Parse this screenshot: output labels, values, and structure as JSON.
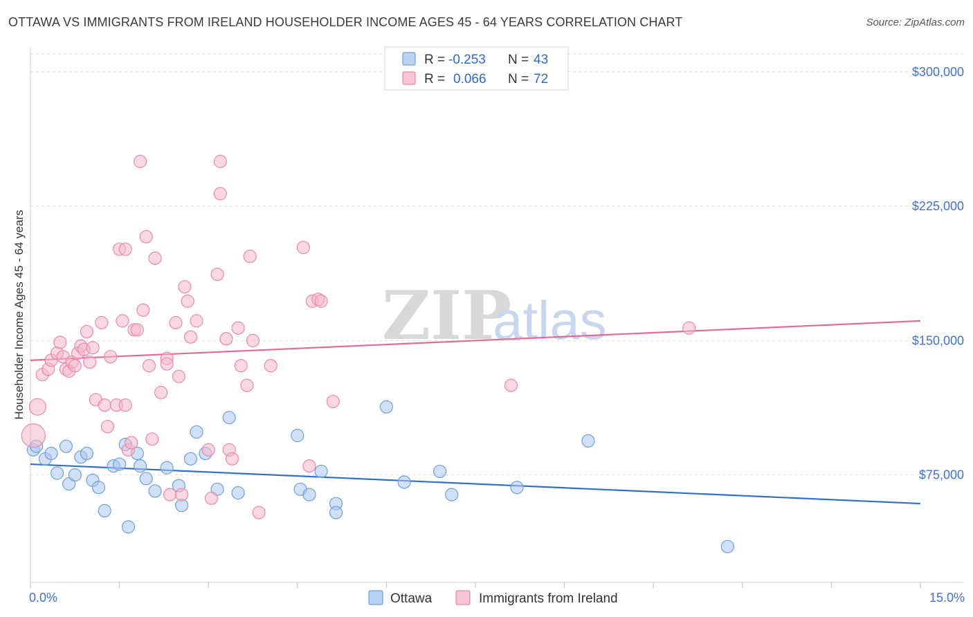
{
  "title": "OTTAWA VS IMMIGRANTS FROM IRELAND HOUSEHOLDER INCOME AGES 45 - 64 YEARS CORRELATION CHART",
  "source": "Source: ZipAtlas.com",
  "watermark": {
    "zip": "ZIP",
    "atlas": "atlas"
  },
  "legend": {
    "rows": [
      {
        "r_label": "R = ",
        "r_value": "-0.253",
        "n_label": "N = ",
        "n_value": "43",
        "color": "#aac8f0"
      },
      {
        "r_label": "R = ",
        "r_value": "0.066",
        "n_label": "N = ",
        "n_value": "72",
        "color": "#f5b8cb"
      }
    ]
  },
  "chart_data": {
    "type": "scatter",
    "ylabel": "Householder Income Ages 45 - 64 years",
    "xlim": [
      0,
      15
    ],
    "ylim": [
      15000,
      310000
    ],
    "x_tick_labels": [
      {
        "value": 0,
        "label": "0.0%"
      },
      {
        "value": 15,
        "label": "15.0%"
      }
    ],
    "y_ticks": [
      {
        "value": 75000,
        "label": "$75,000"
      },
      {
        "value": 150000,
        "label": "$150,000"
      },
      {
        "value": 225000,
        "label": "$225,000"
      },
      {
        "value": 300000,
        "label": "$300,000"
      }
    ],
    "series": [
      {
        "name": "Ottawa",
        "color": "#aac8f0",
        "stroke": "#6f9fd8",
        "trend": {
          "x": [
            0,
            15
          ],
          "y": [
            81000,
            59000
          ],
          "color": "#2f6fc9"
        },
        "points": [
          [
            0.05,
            89000
          ],
          [
            0.1,
            91000
          ],
          [
            0.25,
            84000
          ],
          [
            0.35,
            87000
          ],
          [
            0.45,
            76000
          ],
          [
            0.6,
            91000
          ],
          [
            0.65,
            70000
          ],
          [
            0.75,
            75000
          ],
          [
            0.85,
            85000
          ],
          [
            0.95,
            87000
          ],
          [
            1.05,
            72000
          ],
          [
            1.15,
            68000
          ],
          [
            1.25,
            55000
          ],
          [
            1.4,
            80000
          ],
          [
            1.5,
            81000
          ],
          [
            1.6,
            92000
          ],
          [
            1.65,
            46000
          ],
          [
            1.8,
            87000
          ],
          [
            1.85,
            80000
          ],
          [
            1.95,
            73000
          ],
          [
            2.1,
            66000
          ],
          [
            2.3,
            79000
          ],
          [
            2.5,
            69000
          ],
          [
            2.55,
            58000
          ],
          [
            2.7,
            84000
          ],
          [
            2.8,
            99000
          ],
          [
            2.95,
            87000
          ],
          [
            3.15,
            67000
          ],
          [
            3.35,
            107000
          ],
          [
            3.5,
            65000
          ],
          [
            4.5,
            97000
          ],
          [
            4.55,
            67000
          ],
          [
            4.7,
            64000
          ],
          [
            4.9,
            77000
          ],
          [
            5.15,
            59000
          ],
          [
            5.15,
            54000
          ],
          [
            6.0,
            113000
          ],
          [
            6.3,
            71000
          ],
          [
            6.9,
            77000
          ],
          [
            7.1,
            64000
          ],
          [
            8.2,
            68000
          ],
          [
            9.4,
            94000
          ],
          [
            11.75,
            35000
          ]
        ]
      },
      {
        "name": "Immigrants from Ireland",
        "color": "#f5b8cb",
        "stroke": "#e88aa7",
        "trend": {
          "x": [
            0,
            15
          ],
          "y": [
            139000,
            161000
          ],
          "color": "#e26b95"
        },
        "points": [
          [
            0.05,
            97000
          ],
          [
            0.12,
            113000
          ],
          [
            0.2,
            131000
          ],
          [
            0.3,
            134000
          ],
          [
            0.35,
            139000
          ],
          [
            0.45,
            143000
          ],
          [
            0.5,
            149000
          ],
          [
            0.55,
            141000
          ],
          [
            0.6,
            134000
          ],
          [
            0.65,
            133000
          ],
          [
            0.7,
            138000
          ],
          [
            0.75,
            136000
          ],
          [
            0.8,
            143000
          ],
          [
            0.85,
            147000
          ],
          [
            0.9,
            145000
          ],
          [
            0.95,
            155000
          ],
          [
            1.0,
            138000
          ],
          [
            1.05,
            146000
          ],
          [
            1.1,
            117000
          ],
          [
            1.2,
            160000
          ],
          [
            1.25,
            114000
          ],
          [
            1.3,
            102000
          ],
          [
            1.35,
            141000
          ],
          [
            1.45,
            114000
          ],
          [
            1.5,
            201000
          ],
          [
            1.55,
            161000
          ],
          [
            1.6,
            201000
          ],
          [
            1.6,
            114000
          ],
          [
            1.65,
            89000
          ],
          [
            1.7,
            93000
          ],
          [
            1.75,
            156000
          ],
          [
            1.8,
            156000
          ],
          [
            1.85,
            250000
          ],
          [
            1.9,
            167000
          ],
          [
            1.95,
            208000
          ],
          [
            2.0,
            136000
          ],
          [
            2.05,
            95000
          ],
          [
            2.1,
            196000
          ],
          [
            2.2,
            121000
          ],
          [
            2.3,
            140000
          ],
          [
            2.3,
            137000
          ],
          [
            2.35,
            64000
          ],
          [
            2.45,
            160000
          ],
          [
            2.5,
            130000
          ],
          [
            2.55,
            64000
          ],
          [
            2.6,
            180000
          ],
          [
            2.65,
            172000
          ],
          [
            2.7,
            152000
          ],
          [
            2.8,
            161000
          ],
          [
            3.0,
            89000
          ],
          [
            3.05,
            62000
          ],
          [
            3.15,
            187000
          ],
          [
            3.2,
            250000
          ],
          [
            3.2,
            232000
          ],
          [
            3.3,
            151000
          ],
          [
            3.35,
            89000
          ],
          [
            3.4,
            84000
          ],
          [
            3.5,
            157000
          ],
          [
            3.55,
            136000
          ],
          [
            3.65,
            125000
          ],
          [
            3.7,
            197000
          ],
          [
            3.75,
            150000
          ],
          [
            3.85,
            54000
          ],
          [
            4.05,
            136000
          ],
          [
            4.6,
            202000
          ],
          [
            4.7,
            80000
          ],
          [
            4.75,
            172000
          ],
          [
            4.85,
            173000
          ],
          [
            4.9,
            172000
          ],
          [
            5.1,
            116000
          ],
          [
            8.1,
            125000
          ],
          [
            11.1,
            157000
          ]
        ]
      }
    ]
  }
}
